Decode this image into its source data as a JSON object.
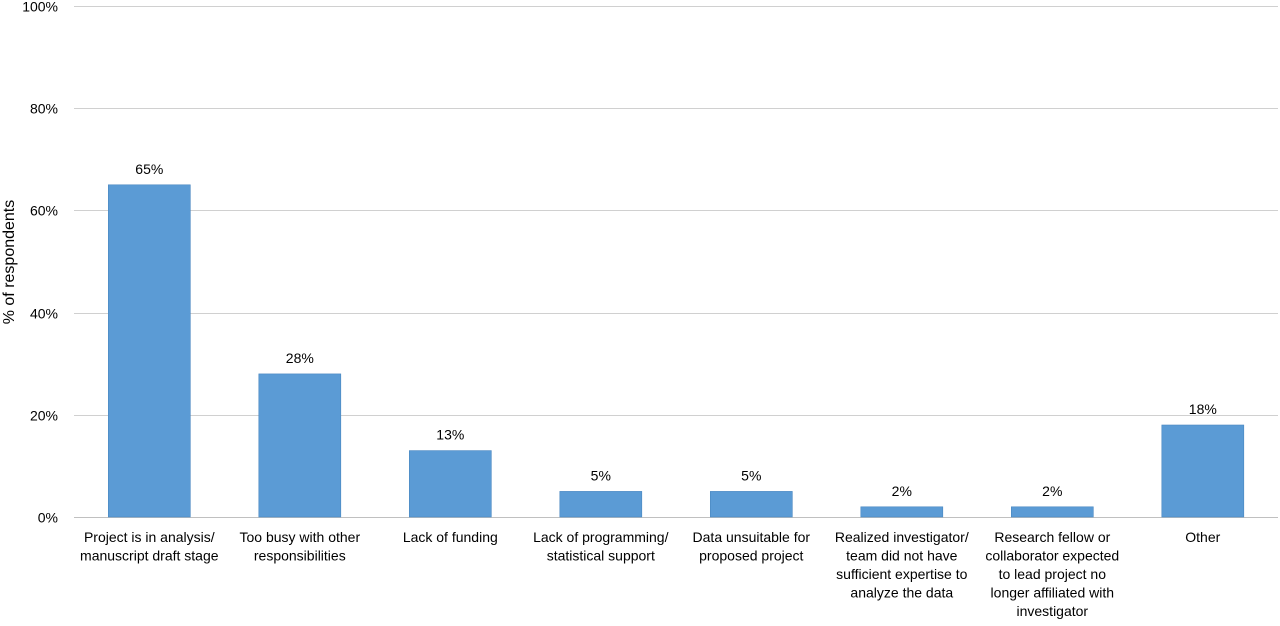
{
  "chart_data": {
    "type": "bar",
    "title": "",
    "xlabel": "",
    "ylabel": "% of respondents",
    "ylim": [
      0,
      100
    ],
    "yticks": [
      0,
      20,
      40,
      60,
      80,
      100
    ],
    "ytick_labels": [
      "0%",
      "20%",
      "40%",
      "60%",
      "80%",
      "100%"
    ],
    "grid": true,
    "legend": "none",
    "bar_color": "#5b9bd5",
    "categories": [
      [
        "Project is in analysis/",
        "manuscript draft stage"
      ],
      [
        "Too busy with other",
        "responsibilities"
      ],
      [
        "Lack of funding"
      ],
      [
        "Lack of programming/",
        "statistical support"
      ],
      [
        "Data unsuitable for",
        "proposed project"
      ],
      [
        "Realized investigator/",
        "team did not have",
        "sufficient expertise to",
        "analyze the data"
      ],
      [
        "Research fellow or",
        "collaborator expected",
        "to lead project no",
        "longer affiliated with",
        "investigator"
      ],
      [
        "Other"
      ]
    ],
    "values": [
      65,
      28,
      13,
      5,
      5,
      2,
      2,
      18
    ],
    "data_labels": [
      "65%",
      "28%",
      "13%",
      "5%",
      "5%",
      "2%",
      "2%",
      "18%"
    ]
  }
}
